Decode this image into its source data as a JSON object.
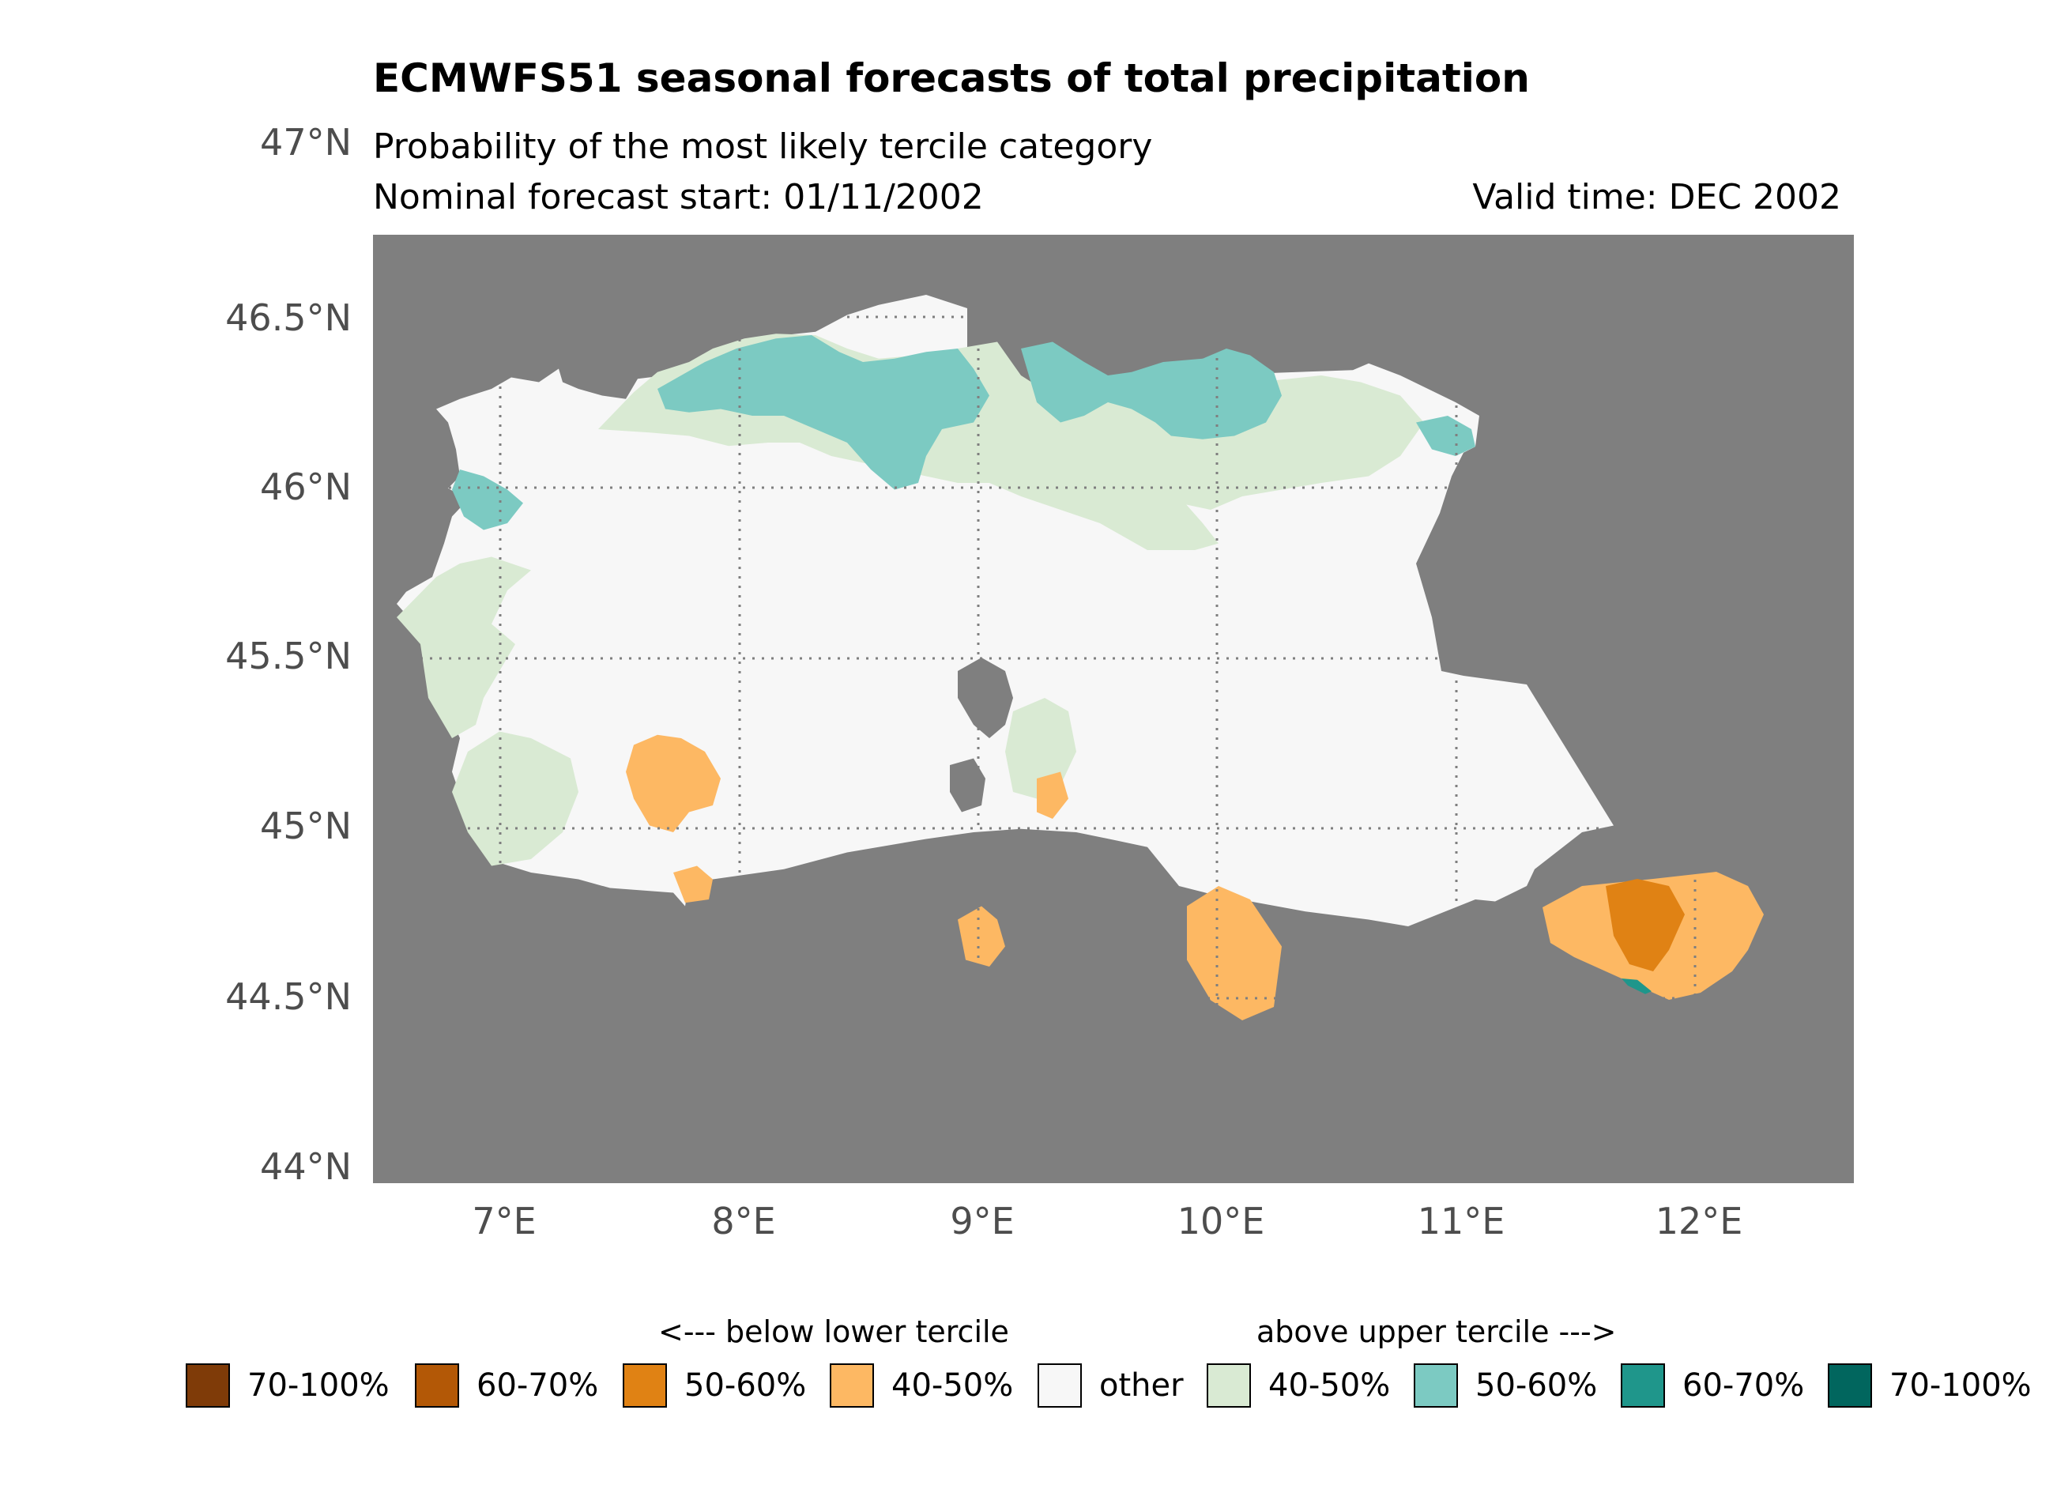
{
  "title": "ECMWFS51 seasonal forecasts of total precipitation",
  "subtitle": "Probability of the most likely tercile category",
  "forecast_start": "Nominal forecast start: 01/11/2002",
  "valid_time": "Valid time: DEC 2002",
  "axes": {
    "lat_labels": [
      "47°N",
      "46.5°N",
      "46°N",
      "45.5°N",
      "45°N",
      "44.5°N",
      "44°N"
    ],
    "lon_labels": [
      "7°E",
      "8°E",
      "9°E",
      "10°E",
      "11°E",
      "12°E"
    ]
  },
  "map": {
    "background_color": "#7f7f7f",
    "extent": {
      "lon_min": 6.5,
      "lon_max": 12.7,
      "lat_min": 44.0,
      "lat_max": 46.75
    },
    "gridlines": {
      "lons": [
        7,
        8,
        9,
        10,
        11,
        12
      ],
      "lats": [
        44.5,
        45,
        45.5,
        46,
        46.5
      ],
      "style": "dotted"
    }
  },
  "legend": {
    "below_heading": "<--- below lower tercile",
    "above_heading": "above upper tercile --->",
    "items": [
      {
        "label": "70-100%",
        "color": "#7f3b08"
      },
      {
        "label": "60-70%",
        "color": "#b35806"
      },
      {
        "label": "50-60%",
        "color": "#e08214"
      },
      {
        "label": "40-50%",
        "color": "#fdb863"
      },
      {
        "label": "other",
        "color": "#f7f7f7"
      },
      {
        "label": "40-50%",
        "color": "#d9ead3"
      },
      {
        "label": "50-60%",
        "color": "#7ccac2"
      },
      {
        "label": "60-70%",
        "color": "#1f968b"
      },
      {
        "label": "70-100%",
        "color": "#01665e"
      }
    ]
  }
}
